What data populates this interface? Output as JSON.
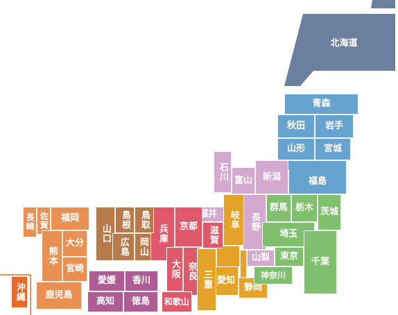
{
  "colors": {
    "hokkaido": "#6b7f9f",
    "tohoku": "#66a3cf",
    "kanto": "#7fbf6d",
    "chubu": "#d4a8cf",
    "chubu_east": "#e5a228",
    "kinki": "#e0596a",
    "chugoku": "#b87a4a",
    "shikoku": "#b05c94",
    "kyushu": "#eb9053",
    "okinawa": "#e86a26"
  },
  "prefectures": {
    "hokkaido": "北海道",
    "aomori": "青森",
    "akita": "秋田",
    "iwate": "岩手",
    "yamagata": "山形",
    "miyagi": "宮城",
    "fukushima": "福島",
    "niigata": "新潟",
    "toyama": "富山",
    "ishikawa": "石川",
    "fukui": "福井",
    "nagano": "長野",
    "gunma": "群馬",
    "tochigi": "栃木",
    "ibaraki": "茨城",
    "saitama": "埼玉",
    "tokyo": "東京",
    "chiba": "千葉",
    "kanagawa": "神奈川",
    "yamanashi": "山梨",
    "shizuoka": "静岡",
    "aichi": "愛知",
    "gifu": "岐阜",
    "shiga": "滋賀",
    "mie": "三重",
    "kyoto": "京都",
    "osaka": "大阪",
    "nara": "奈良",
    "wakayama": "和歌山",
    "hyogo": "兵庫",
    "tottori": "鳥取",
    "shimane": "島根",
    "okayama": "岡山",
    "hiroshima": "広島",
    "yamaguchi": "山口",
    "kagawa": "香川",
    "ehime": "愛媛",
    "tokushima": "徳島",
    "kochi": "高知",
    "fukuoka": "福岡",
    "saga": "佐賀",
    "nagasaki": "長崎",
    "oita": "大分",
    "kumamoto": "熊本",
    "miyazaki": "宮崎",
    "kagoshima": "鹿児島",
    "okinawa": "沖縄"
  }
}
